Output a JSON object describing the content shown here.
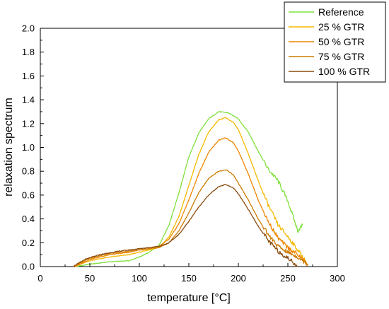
{
  "chart_data": {
    "type": "line",
    "xlabel": "temperature [°C]",
    "ylabel": "relaxation spectrum",
    "xlim": [
      0,
      300
    ],
    "ylim": [
      0,
      2.0
    ],
    "x_ticks": [
      0,
      50,
      100,
      150,
      200,
      250,
      300
    ],
    "y_ticks": [
      0.0,
      0.2,
      0.4,
      0.6,
      0.8,
      1.0,
      1.2,
      1.4,
      1.6,
      1.8,
      2.0
    ],
    "x_tick_labels": [
      "0",
      "50",
      "100",
      "150",
      "200",
      "250",
      "300"
    ],
    "y_tick_labels": [
      "0.0",
      "0.2",
      "0.4",
      "0.6",
      "0.8",
      "1.0",
      "1.2",
      "1.4",
      "1.6",
      "1.8",
      "2.0"
    ],
    "grid": false,
    "legend_position": "top-right",
    "series": [
      {
        "name": "Reference",
        "color": "#7ee03c",
        "x": [
          36,
          50,
          70,
          90,
          100,
          110,
          120,
          130,
          140,
          150,
          160,
          170,
          180,
          190,
          200,
          210,
          220,
          230,
          240,
          250,
          260,
          265
        ],
        "y": [
          0.0,
          0.02,
          0.04,
          0.05,
          0.08,
          0.12,
          0.18,
          0.35,
          0.62,
          0.92,
          1.12,
          1.24,
          1.3,
          1.29,
          1.24,
          1.13,
          0.97,
          0.82,
          0.72,
          0.55,
          0.3,
          0.35
        ]
      },
      {
        "name": "25 % GTR",
        "color": "#f5b800",
        "x": [
          35,
          50,
          70,
          90,
          100,
          110,
          120,
          130,
          140,
          150,
          160,
          170,
          180,
          187,
          195,
          200,
          210,
          220,
          230,
          240,
          250,
          260,
          270
        ],
        "y": [
          0.0,
          0.05,
          0.08,
          0.1,
          0.12,
          0.14,
          0.16,
          0.25,
          0.42,
          0.68,
          0.94,
          1.13,
          1.23,
          1.25,
          1.21,
          1.15,
          0.95,
          0.72,
          0.52,
          0.35,
          0.25,
          0.14,
          0.02
        ]
      },
      {
        "name": "50 % GTR",
        "color": "#ee8600",
        "x": [
          35,
          50,
          70,
          90,
          100,
          110,
          120,
          130,
          140,
          150,
          160,
          170,
          180,
          187,
          195,
          200,
          210,
          220,
          230,
          240,
          250,
          260,
          270
        ],
        "y": [
          0.0,
          0.06,
          0.1,
          0.12,
          0.14,
          0.15,
          0.17,
          0.23,
          0.36,
          0.56,
          0.78,
          0.96,
          1.06,
          1.08,
          1.04,
          0.97,
          0.78,
          0.56,
          0.38,
          0.24,
          0.16,
          0.1,
          0.02
        ]
      },
      {
        "name": "75 % GTR",
        "color": "#cc7a00",
        "x": [
          33,
          50,
          70,
          90,
          100,
          110,
          120,
          130,
          140,
          150,
          160,
          170,
          180,
          188,
          195,
          200,
          210,
          220,
          230,
          240,
          250,
          260,
          270
        ],
        "y": [
          0.0,
          0.07,
          0.11,
          0.13,
          0.14,
          0.15,
          0.16,
          0.2,
          0.3,
          0.45,
          0.62,
          0.74,
          0.8,
          0.81,
          0.77,
          0.7,
          0.56,
          0.4,
          0.27,
          0.17,
          0.12,
          0.08,
          0.02
        ]
      },
      {
        "name": "100 % GTR",
        "color": "#8a4b0e",
        "x": [
          33,
          45,
          60,
          80,
          100,
          110,
          120,
          130,
          140,
          150,
          160,
          170,
          180,
          187,
          195,
          200,
          210,
          220,
          230,
          240,
          250,
          255,
          260
        ],
        "y": [
          0.0,
          0.06,
          0.1,
          0.13,
          0.15,
          0.16,
          0.17,
          0.2,
          0.27,
          0.38,
          0.5,
          0.6,
          0.67,
          0.69,
          0.66,
          0.61,
          0.48,
          0.34,
          0.22,
          0.13,
          0.07,
          0.04,
          0.0
        ]
      }
    ]
  }
}
